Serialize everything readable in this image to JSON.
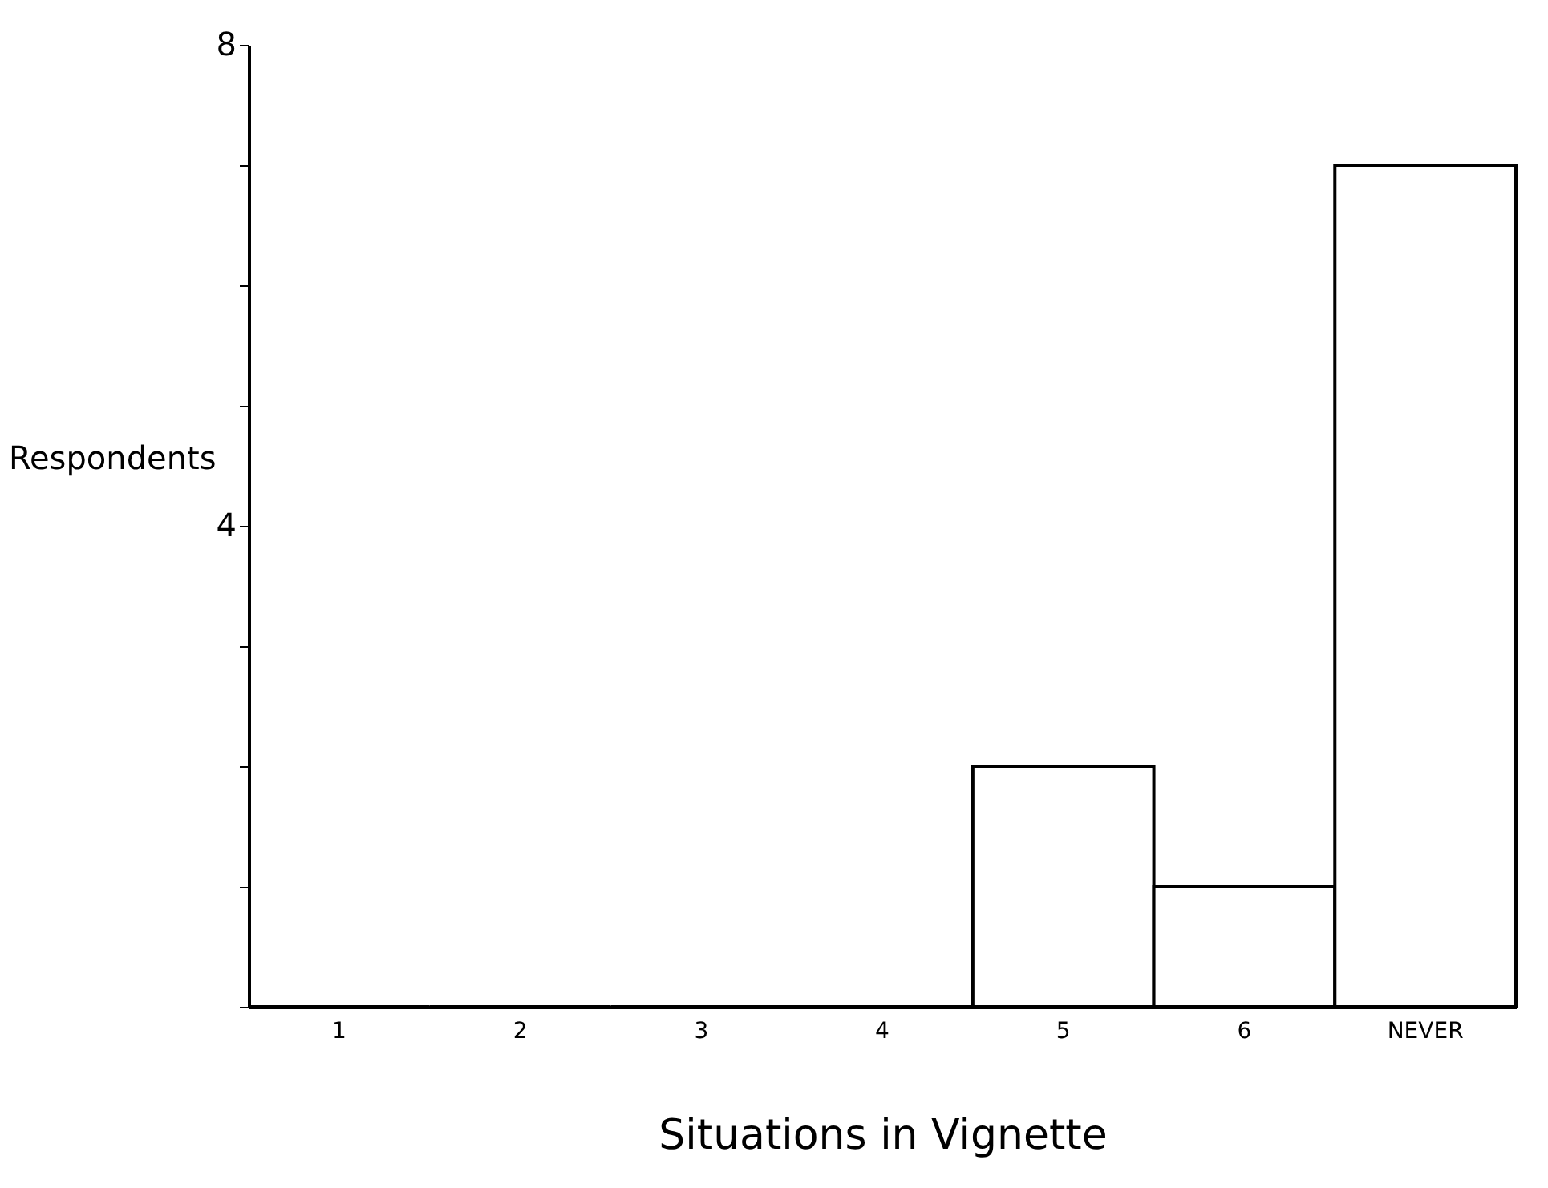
{
  "chart_data": {
    "type": "bar",
    "xlabel": "Situations in Vignette",
    "ylabel": "Respondents",
    "categories": [
      "1",
      "2",
      "3",
      "4",
      "5",
      "6",
      "NEVER"
    ],
    "values": [
      0,
      0,
      0,
      0,
      2,
      1,
      7
    ],
    "color": "#ffffff",
    "ylim": [
      0,
      8
    ],
    "yticks": [
      {
        "value": 0,
        "label": null
      },
      {
        "value": 1,
        "label": null
      },
      {
        "value": 2,
        "label": null
      },
      {
        "value": 3,
        "label": null
      },
      4,
      {
        "value": 5,
        "label": null
      },
      {
        "value": 6,
        "label": null
      },
      {
        "value": 7,
        "label": null
      },
      8
    ],
    "grid": false
  }
}
